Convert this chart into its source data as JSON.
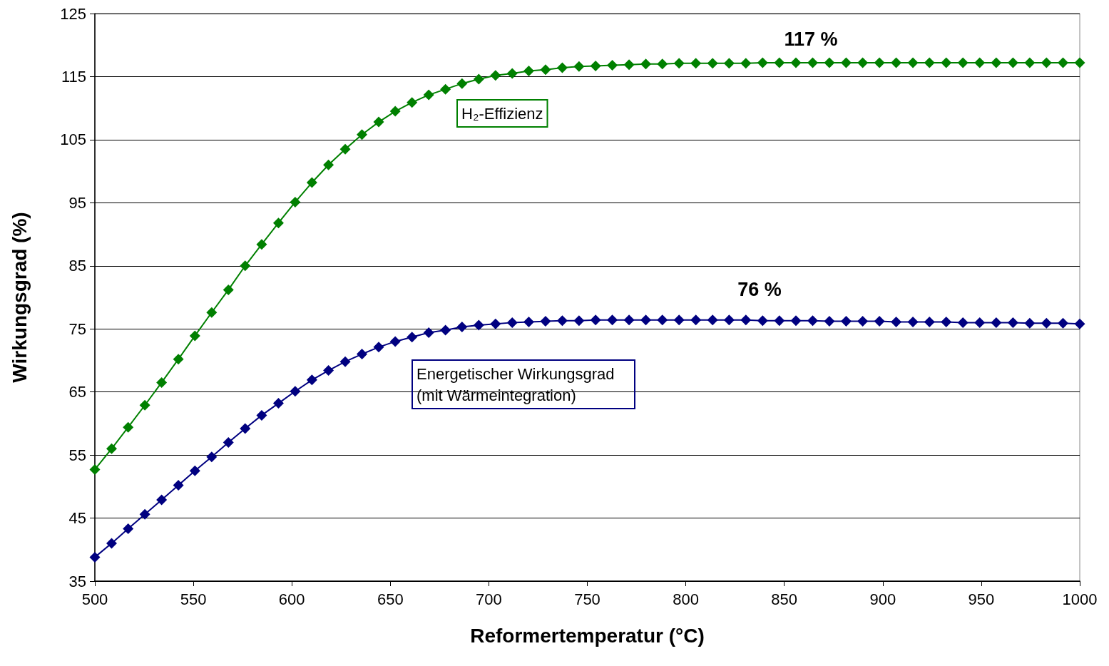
{
  "chart_data": {
    "type": "line",
    "xlabel": "Reformertemperatur (°C)",
    "ylabel": "Wirkungsgrad (%)",
    "x": [
      500,
      508.5,
      516.9,
      525.4,
      533.9,
      542.4,
      550.8,
      559.3,
      567.8,
      576.3,
      584.7,
      593.2,
      601.7,
      610.2,
      618.6,
      627.1,
      635.6,
      644.1,
      652.5,
      661.0,
      669.5,
      678.0,
      686.4,
      694.9,
      703.4,
      711.9,
      720.3,
      728.8,
      737.3,
      745.8,
      754.2,
      762.7,
      771.2,
      779.7,
      788.1,
      796.6,
      805.1,
      813.6,
      822.0,
      830.5,
      839.0,
      847.5,
      855.9,
      864.4,
      872.9,
      881.4,
      889.8,
      898.3,
      906.8,
      915.3,
      923.7,
      932.2,
      940.7,
      949.2,
      957.6,
      966.1,
      974.6,
      983.1,
      991.5,
      1000
    ],
    "series": [
      {
        "name": "H₂-Effizienz",
        "color": "#008000",
        "values": [
          52.7,
          56.0,
          59.4,
          62.9,
          66.5,
          70.2,
          73.9,
          77.6,
          81.2,
          85.0,
          88.4,
          91.8,
          95.1,
          98.2,
          101.0,
          103.5,
          105.8,
          107.8,
          109.5,
          110.9,
          112.1,
          113.0,
          113.9,
          114.6,
          115.2,
          115.5,
          115.9,
          116.1,
          116.4,
          116.6,
          116.7,
          116.8,
          116.9,
          117.0,
          117.0,
          117.1,
          117.1,
          117.1,
          117.1,
          117.1,
          117.2,
          117.2,
          117.2,
          117.2,
          117.2,
          117.2,
          117.2,
          117.2,
          117.2,
          117.2,
          117.2,
          117.2,
          117.2,
          117.2,
          117.2,
          117.2,
          117.2,
          117.2,
          117.2,
          117.2
        ]
      },
      {
        "name": "Energetischer Wirkungsgrad (mit Wärmeintegration)",
        "color": "#000080",
        "values": [
          38.8,
          41.0,
          43.3,
          45.6,
          47.9,
          50.2,
          52.5,
          54.7,
          57.0,
          59.2,
          61.3,
          63.2,
          65.1,
          66.9,
          68.4,
          69.8,
          71.0,
          72.1,
          73.0,
          73.7,
          74.4,
          74.8,
          75.3,
          75.6,
          75.8,
          76.0,
          76.1,
          76.2,
          76.3,
          76.3,
          76.4,
          76.4,
          76.4,
          76.4,
          76.4,
          76.4,
          76.4,
          76.4,
          76.4,
          76.4,
          76.3,
          76.3,
          76.3,
          76.3,
          76.2,
          76.2,
          76.2,
          76.2,
          76.1,
          76.1,
          76.1,
          76.1,
          76.0,
          76.0,
          76.0,
          76.0,
          75.9,
          75.9,
          75.9,
          75.8
        ]
      }
    ],
    "annotations": [
      "117 %",
      "76 %"
    ],
    "xlim": [
      500,
      1000
    ],
    "xticks": [
      500,
      550,
      600,
      650,
      700,
      750,
      800,
      850,
      900,
      950,
      1000
    ],
    "ylim": [
      35,
      125
    ],
    "yticks": [
      35,
      45,
      55,
      65,
      75,
      85,
      95,
      105,
      115,
      125
    ],
    "grid": "y",
    "marker": "diamond",
    "line_style": "solid"
  }
}
